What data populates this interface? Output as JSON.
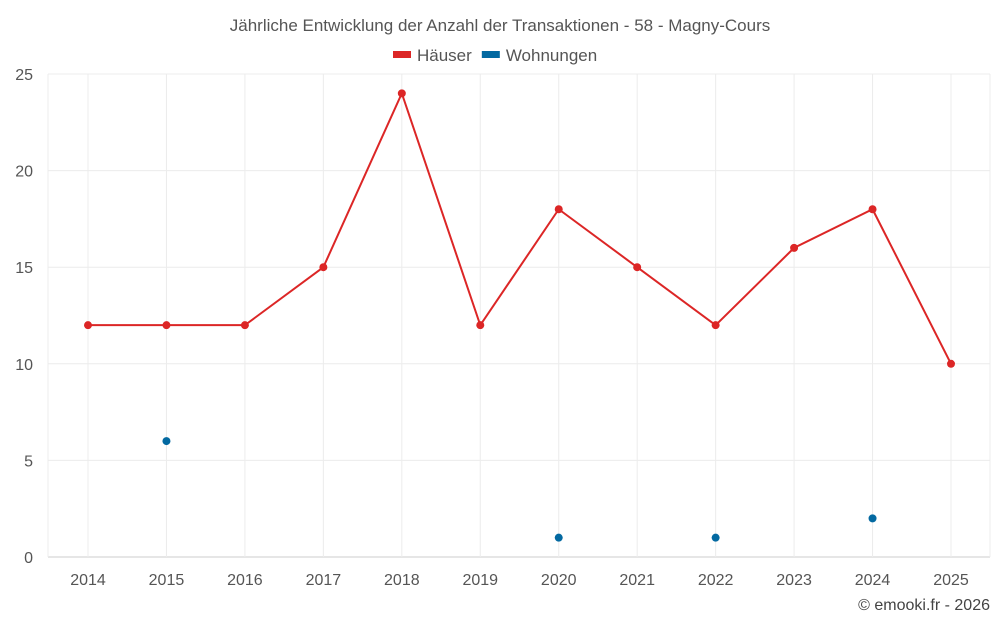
{
  "chart_data": {
    "type": "line",
    "title": "Jährliche Entwicklung der Anzahl der Transaktionen - 58 - Magny-Cours",
    "xlabel": "",
    "ylabel": "",
    "x": [
      "2014",
      "2015",
      "2016",
      "2017",
      "2018",
      "2019",
      "2020",
      "2021",
      "2022",
      "2023",
      "2024",
      "2025"
    ],
    "ylim": [
      0,
      25
    ],
    "yticks": [
      0,
      5,
      10,
      15,
      20,
      25
    ],
    "grid": true,
    "legend_position": "top-center",
    "series": [
      {
        "name": "Häuser",
        "color": "#dc2626",
        "values": [
          12,
          12,
          12,
          15,
          24,
          12,
          18,
          15,
          12,
          16,
          18,
          10
        ]
      },
      {
        "name": "Wohnungen",
        "color": "#0369a1",
        "values": [
          null,
          6,
          null,
          null,
          null,
          null,
          1,
          null,
          1,
          null,
          2,
          null
        ]
      }
    ],
    "credit": "© emooki.fr - 2026"
  }
}
